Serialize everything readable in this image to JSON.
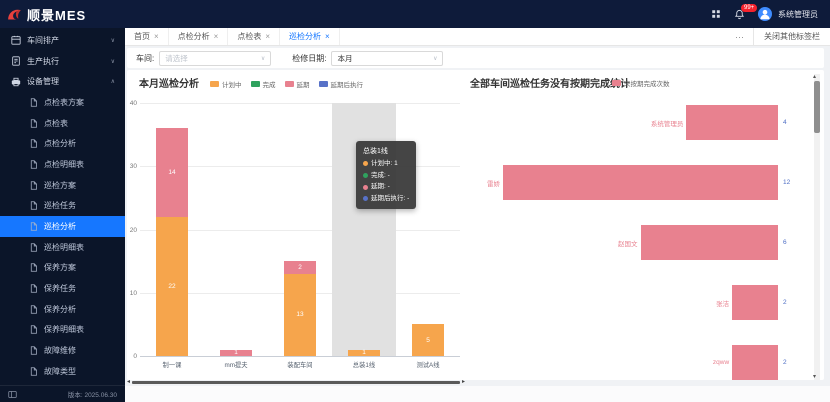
{
  "brand": {
    "logo_text": "顺景MES"
  },
  "topbar": {
    "badge_count": "99+",
    "user_name": "系统管理员"
  },
  "tabs": {
    "items": [
      {
        "label": "首页",
        "active": false
      },
      {
        "label": "点检分析",
        "active": false
      },
      {
        "label": "点检表",
        "active": false
      },
      {
        "label": "巡检分析",
        "active": true
      }
    ],
    "close_icon": "×",
    "more_label": "···",
    "close_others_label": "关闭其他标签栏"
  },
  "sidebar": {
    "groups": [
      {
        "label": "车间排产",
        "icon": "workshop-scheduling-icon",
        "expanded": false,
        "children": []
      },
      {
        "label": "生产执行",
        "icon": "production-execution-icon",
        "expanded": false,
        "children": []
      },
      {
        "label": "设备管理",
        "icon": "equipment-management-icon",
        "expanded": true,
        "children": [
          {
            "label": "点检表方案",
            "selected": false
          },
          {
            "label": "点检表",
            "selected": false
          },
          {
            "label": "点检分析",
            "selected": false
          },
          {
            "label": "点检明细表",
            "selected": false
          },
          {
            "label": "巡检方案",
            "selected": false
          },
          {
            "label": "巡检任务",
            "selected": false
          },
          {
            "label": "巡检分析",
            "selected": true
          },
          {
            "label": "巡检明细表",
            "selected": false
          },
          {
            "label": "保养方案",
            "selected": false
          },
          {
            "label": "保养任务",
            "selected": false
          },
          {
            "label": "保养分析",
            "selected": false
          },
          {
            "label": "保养明细表",
            "selected": false
          },
          {
            "label": "故障维修",
            "selected": false
          },
          {
            "label": "故障类型",
            "selected": false
          }
        ]
      }
    ],
    "footer": {
      "version": "版本: 2025.06.30"
    }
  },
  "filters": {
    "workshop_label": "车间:",
    "workshop_placeholder": "请选择",
    "date_label": "检修日期:",
    "date_value": "本月"
  },
  "chart_data": [
    {
      "type": "bar",
      "title": "本月巡检分析",
      "stacked": true,
      "categories": [
        "制一课",
        "mm提夫",
        "装配车间",
        "总装1线",
        "测试A线"
      ],
      "series": [
        {
          "name": "计划中",
          "color": "#F6A54C",
          "values": [
            22,
            0,
            13,
            1,
            5
          ]
        },
        {
          "name": "完成",
          "color": "#2FA25E",
          "values": [
            0,
            0,
            0,
            0,
            0
          ]
        },
        {
          "name": "延期",
          "color": "#E8818F",
          "values": [
            14,
            1,
            2,
            0,
            0
          ]
        },
        {
          "name": "延期后执行",
          "color": "#5872C8",
          "values": [
            0,
            0,
            0,
            0,
            0
          ]
        }
      ],
      "ylim": [
        0,
        40
      ],
      "yticks": [
        0,
        10,
        20,
        30,
        40
      ],
      "grid": true,
      "legend_position": "top",
      "hover_category_index": 3
    },
    {
      "type": "bar",
      "orientation": "horizontal-right-anchored",
      "title": "全部车间巡检任务没有按期完成统计",
      "legend": [
        {
          "name": "未按期完成次数",
          "color": "#E8818F"
        }
      ],
      "categories": [
        "系统管理员",
        "雷娇",
        "赵国文",
        "张洁",
        "zqww"
      ],
      "values": [
        4,
        12,
        6,
        2,
        2
      ],
      "xmax": 12,
      "bar_color": "#E8818F",
      "category_label_color": "#E8818F",
      "value_label_color": "#4F6FC5"
    }
  ],
  "tooltip": {
    "title": "总装1线",
    "rows": [
      {
        "name": "计划中",
        "value": "1",
        "color": "#F6A54C"
      },
      {
        "name": "完成",
        "value": "-",
        "color": "#2FA25E"
      },
      {
        "name": "延期",
        "value": "-",
        "color": "#E8818F"
      },
      {
        "name": "延期后执行",
        "value": "-",
        "color": "#5872C8"
      }
    ]
  }
}
